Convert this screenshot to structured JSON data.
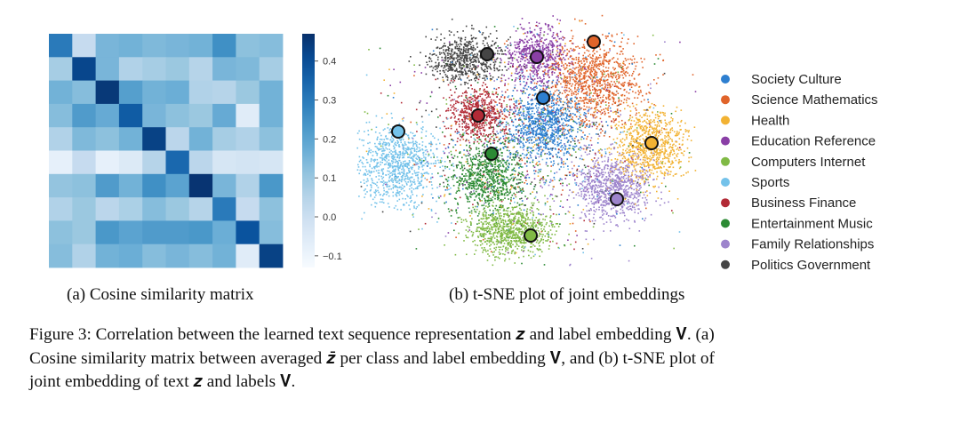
{
  "panel_a": {
    "caption": "(a) Cosine similarity matrix",
    "chart_data": {
      "type": "heatmap",
      "title": "",
      "rows": 10,
      "cols": 10,
      "colormap": "Blues",
      "vmin": -0.13,
      "vmax": 0.47,
      "colorbar_ticks": [
        "0.4",
        "0.3",
        "0.2",
        "0.1",
        "0.0",
        "−0.1"
      ],
      "colorbar_values": [
        0.4,
        0.3,
        0.2,
        0.1,
        0.0,
        -0.1
      ],
      "values": [
        [
          0.3,
          0.02,
          0.15,
          0.16,
          0.14,
          0.15,
          0.16,
          0.25,
          0.12,
          0.13
        ],
        [
          0.08,
          0.42,
          0.15,
          0.06,
          0.08,
          0.1,
          0.05,
          0.15,
          0.14,
          0.08
        ],
        [
          0.16,
          0.13,
          0.45,
          0.21,
          0.16,
          0.17,
          0.06,
          0.05,
          0.1,
          0.16
        ],
        [
          0.13,
          0.22,
          0.18,
          0.37,
          0.15,
          0.12,
          0.1,
          0.18,
          -0.06,
          0.16
        ],
        [
          0.06,
          0.14,
          0.12,
          0.16,
          0.43,
          0.04,
          0.16,
          0.08,
          0.06,
          0.12
        ],
        [
          -0.08,
          0.02,
          -0.08,
          -0.05,
          0.05,
          0.34,
          0.04,
          -0.03,
          -0.02,
          -0.03
        ],
        [
          0.11,
          0.12,
          0.22,
          0.16,
          0.25,
          0.2,
          0.46,
          0.15,
          0.06,
          0.23
        ],
        [
          0.06,
          0.1,
          0.04,
          0.07,
          0.13,
          0.1,
          0.05,
          0.3,
          0.02,
          0.12
        ],
        [
          0.12,
          0.1,
          0.23,
          0.2,
          0.22,
          0.22,
          0.23,
          0.17,
          0.39,
          0.13
        ],
        [
          0.13,
          0.06,
          0.16,
          0.17,
          0.13,
          0.15,
          0.13,
          0.16,
          -0.06,
          0.43
        ]
      ]
    }
  },
  "panel_b": {
    "caption": "(b) t-SNE plot of joint embeddings",
    "chart_data": {
      "type": "scatter",
      "title": "",
      "legend_position": "right",
      "series": [
        {
          "name": "Society Culture",
          "color": "#2e7fd0"
        },
        {
          "name": "Science Mathematics",
          "color": "#e0642a"
        },
        {
          "name": "Health",
          "color": "#f2b233"
        },
        {
          "name": "Education Reference",
          "color": "#8a3fa6"
        },
        {
          "name": "Computers Internet",
          "color": "#80ba45"
        },
        {
          "name": "Sports",
          "color": "#74c2ea"
        },
        {
          "name": "Business Finance",
          "color": "#b22a36"
        },
        {
          "name": "Entertainment Music",
          "color": "#2c8a34"
        },
        {
          "name": "Family Relationships",
          "color": "#9d84cc"
        },
        {
          "name": "Politics Government",
          "color": "#454545"
        }
      ]
    }
  },
  "caption": {
    "line1": "Figure 3: Correlation between the learned text sequence representation 𝒛 and label embedding 𝐕. (a)",
    "line2": "Cosine similarity matrix between averaged 𝒛̄ per class and label embedding 𝐕, and (b) t-SNE plot of",
    "line3": "joint embedding of text 𝒛 and labels 𝐕."
  }
}
